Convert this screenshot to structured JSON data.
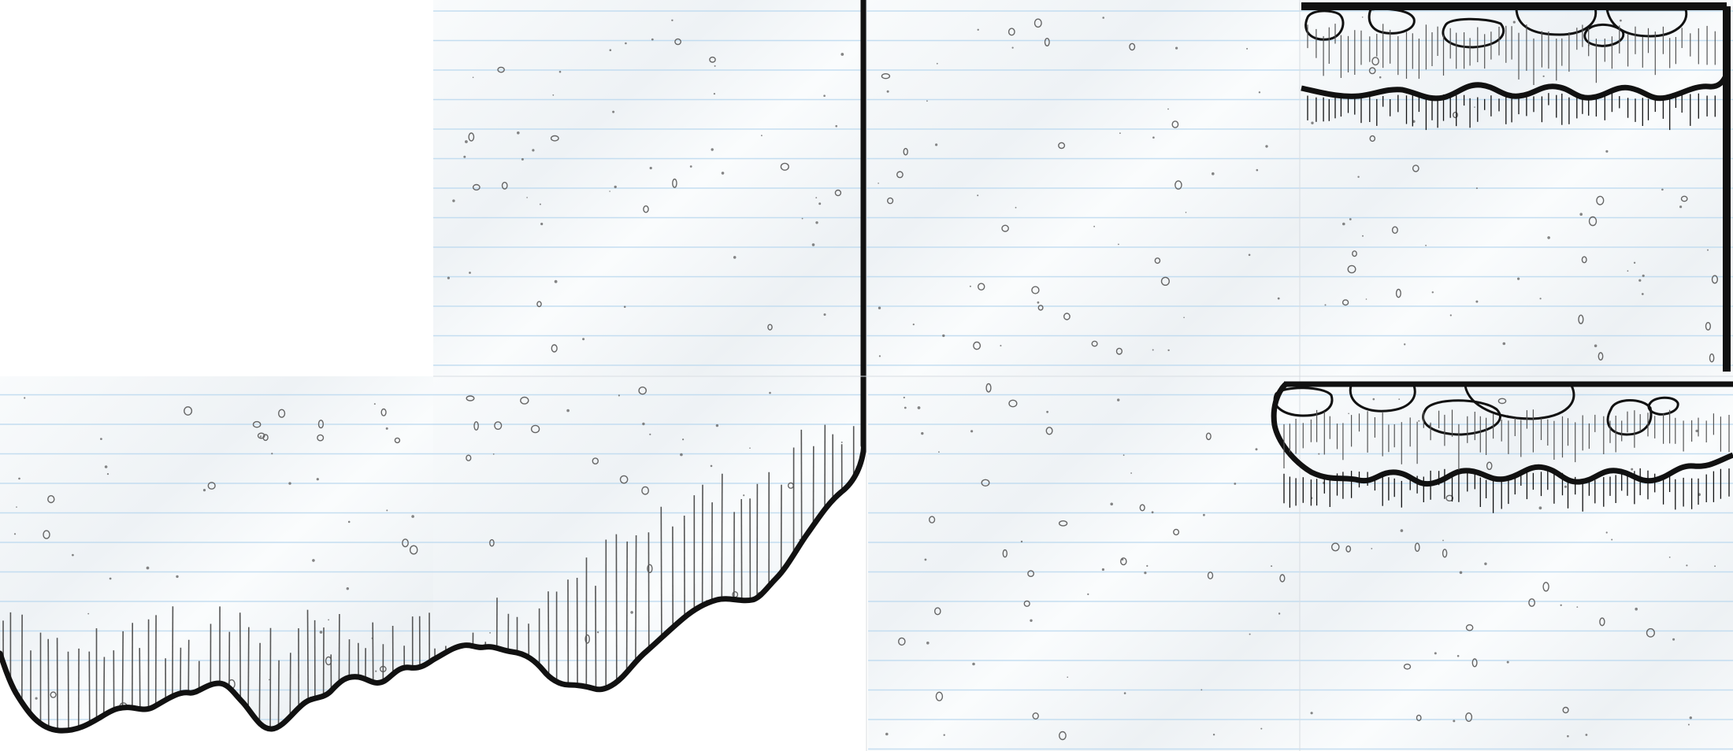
{
  "sheet": {
    "kind": "tileset",
    "style": "hand-drawn ink on lined notebook paper",
    "grid": {
      "columns": 4,
      "rows": 2
    }
  },
  "colors": {
    "background": "#ffffff",
    "paper": "#f7f9fb",
    "paper_shade": "#e9edf1",
    "rule_line": "#bcd9ef",
    "ink": "#111111",
    "speck": "#666666",
    "stroke_detail": "#555555"
  },
  "tiles": [
    {
      "id": "empty-top-left",
      "row": 0,
      "col": 0,
      "type": "empty"
    },
    {
      "id": "paper-fill-a",
      "row": 0,
      "col": 1,
      "type": "paper-fill",
      "edges": [
        "right-wall"
      ]
    },
    {
      "id": "paper-fill-b",
      "row": 0,
      "col": 2,
      "type": "paper-fill",
      "edges": []
    },
    {
      "id": "floating-platform-framed",
      "row": 0,
      "col": 3,
      "type": "floating-platform",
      "edges": [
        "top-border",
        "right-wall"
      ]
    },
    {
      "id": "ground-bottom-edge-left",
      "row": 1,
      "col": 0,
      "type": "ground-edge",
      "edges": [
        "bottom-cliff"
      ]
    },
    {
      "id": "ground-corner-right",
      "row": 1,
      "col": 1,
      "type": "ground-edge",
      "edges": [
        "bottom-cliff",
        "right-wall"
      ]
    },
    {
      "id": "paper-fill-c",
      "row": 1,
      "col": 2,
      "type": "paper-fill",
      "edges": []
    },
    {
      "id": "floating-platform",
      "row": 1,
      "col": 3,
      "type": "floating-platform",
      "edges": []
    }
  ]
}
